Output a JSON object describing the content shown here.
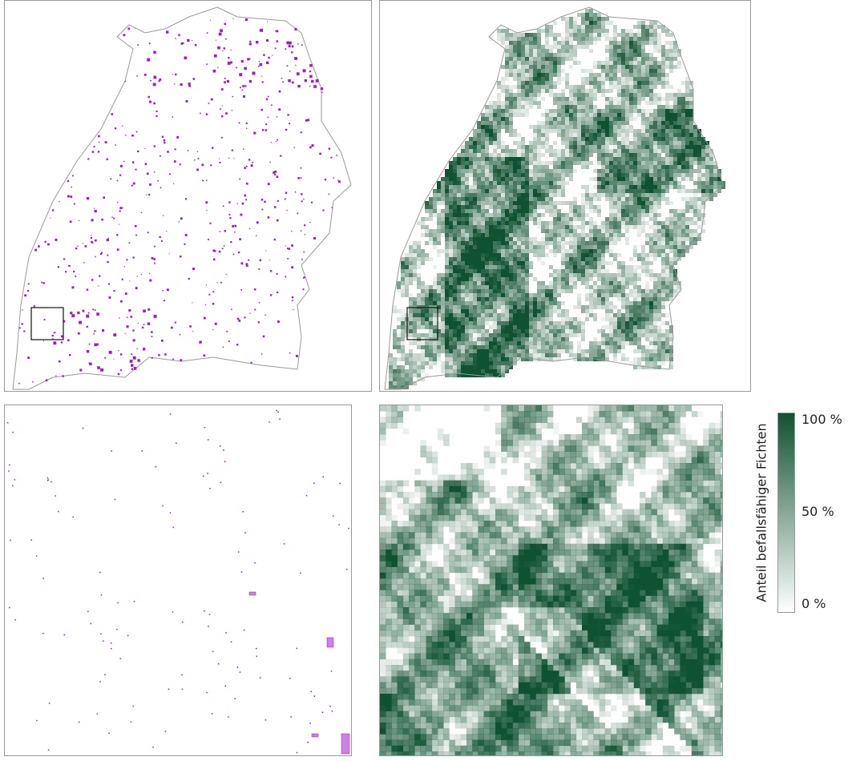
{
  "colors": {
    "infestation": "#9b1fc4",
    "spruce_high": "#0f5232",
    "spruce_low": "#ffffff",
    "outline": "#9a9a9a",
    "inset_box": "#111111"
  },
  "legend": {
    "title": "Anteil befallsfähiger Fichten",
    "ticks": [
      "100 %",
      "50 %",
      "0 %"
    ],
    "range_percent": [
      0,
      100
    ]
  }
}
